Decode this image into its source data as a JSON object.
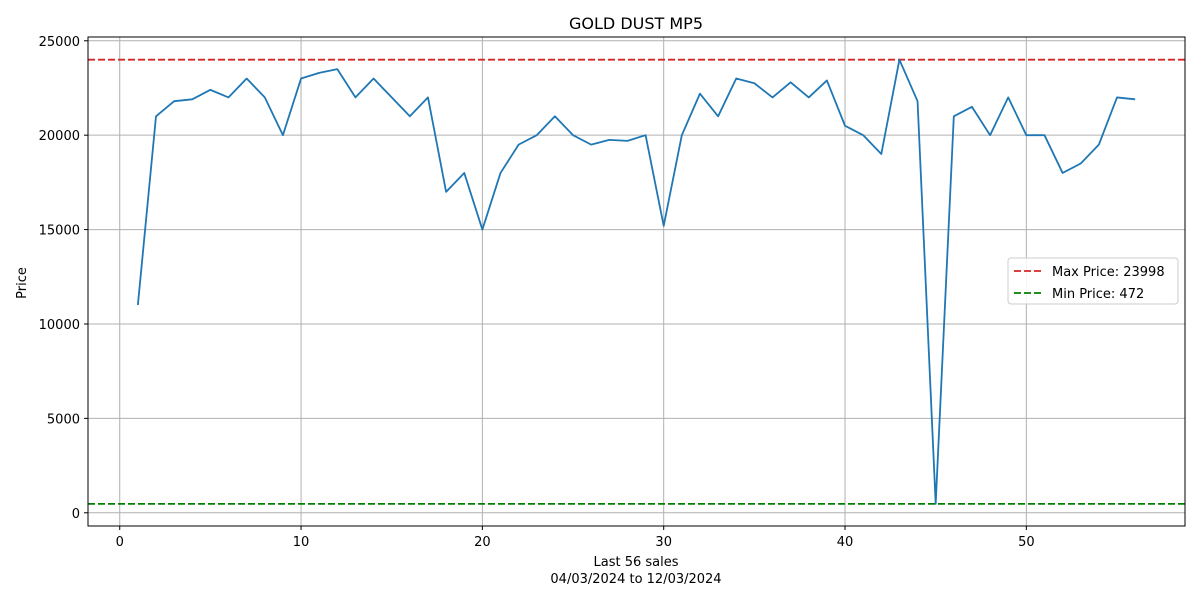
{
  "chart_data": {
    "type": "line",
    "title": "GOLD DUST MP5",
    "xlabel": "Last 56 sales",
    "xlabel_sub": "04/03/2024 to 12/03/2024",
    "ylabel": "Price",
    "xlim": [
      -1.75,
      58.75
    ],
    "ylim": [
      -700,
      25200
    ],
    "x_ticks": [
      0,
      10,
      20,
      30,
      40,
      50
    ],
    "y_ticks": [
      0,
      5000,
      10000,
      15000,
      20000,
      25000
    ],
    "grid": true,
    "legend_position": "center-right",
    "series": [
      {
        "color": "#1f77b4",
        "x": [
          1,
          2,
          3,
          4,
          5,
          6,
          7,
          8,
          9,
          10,
          11,
          12,
          13,
          14,
          15,
          16,
          17,
          18,
          19,
          20,
          21,
          22,
          23,
          24,
          25,
          26,
          27,
          28,
          29,
          30,
          31,
          32,
          33,
          34,
          35,
          36,
          37,
          38,
          39,
          40,
          41,
          42,
          43,
          44,
          45,
          46,
          47,
          48,
          49,
          50,
          51,
          52,
          53,
          54,
          55,
          56
        ],
        "values": [
          11000,
          21000,
          21800,
          21900,
          22400,
          22000,
          23000,
          22000,
          20000,
          23000,
          23300,
          23500,
          22000,
          23000,
          22000,
          21000,
          22000,
          17000,
          18000,
          15000,
          18000,
          19500,
          20000,
          21000,
          20000,
          19500,
          19750,
          19700,
          20000,
          15200,
          20000,
          22200,
          21000,
          23000,
          22750,
          22000,
          22800,
          22000,
          22900,
          20500,
          20000,
          19000,
          23998,
          21800,
          472,
          21000,
          21500,
          20000,
          22000,
          20000,
          20000,
          18000,
          18500,
          19500,
          22000,
          21900
        ]
      }
    ],
    "reference_lines": [
      {
        "name": "Max Price: 23998",
        "value": 23998,
        "color": "#d62728",
        "style": "dashed"
      },
      {
        "name": "Min Price: 472",
        "value": 472,
        "color": "#008000",
        "style": "dashed"
      }
    ]
  }
}
